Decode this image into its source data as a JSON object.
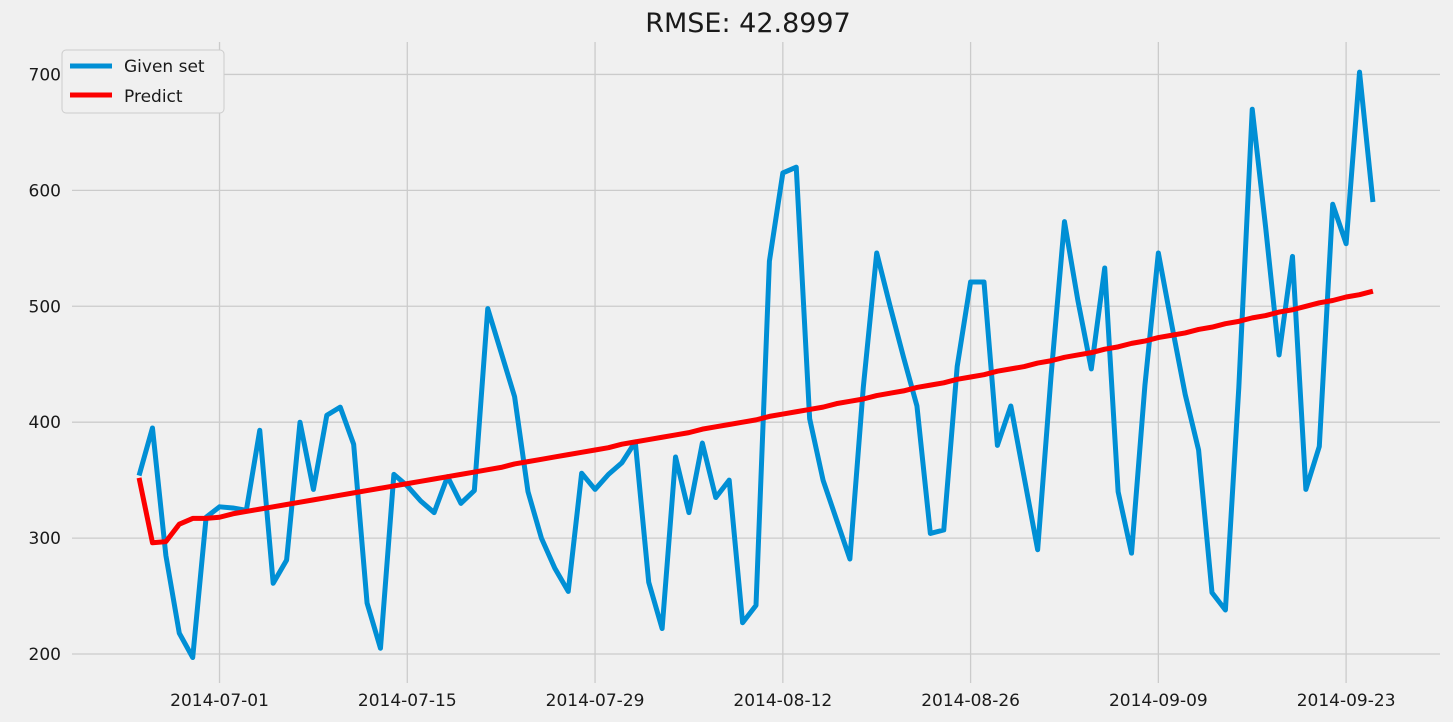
{
  "chart_data": {
    "type": "line",
    "title": "RMSE: 42.8997",
    "xlabel": "",
    "ylabel": "",
    "x_start": "2014-06-25",
    "x_end": "2014-09-24",
    "xlim": [
      "2014-06-20",
      "2014-09-30"
    ],
    "ylim": [
      175,
      728
    ],
    "x_ticks": [
      "2014-07-01",
      "2014-07-15",
      "2014-07-29",
      "2014-08-12",
      "2014-08-26",
      "2014-09-09",
      "2014-09-23"
    ],
    "y_ticks": [
      200,
      300,
      400,
      500,
      600,
      700
    ],
    "grid": true,
    "legend_position": "top-left",
    "series": [
      {
        "name": "Given set",
        "color": "#008fd5",
        "values": [
          354,
          395,
          285,
          218,
          197,
          318,
          327,
          326,
          324,
          393,
          261,
          281,
          400,
          342,
          406,
          413,
          381,
          244,
          205,
          355,
          345,
          332,
          322,
          353,
          330,
          341,
          498,
          460,
          422,
          340,
          300,
          274,
          254,
          356,
          342,
          355,
          365,
          383,
          262,
          222,
          370,
          322,
          382,
          335,
          350,
          227,
          242,
          539,
          615,
          620,
          403,
          350,
          316,
          282,
          430,
          546,
          500,
          456,
          414,
          304,
          307,
          448,
          521,
          521,
          380,
          414,
          352,
          290,
          440,
          573,
          505,
          446,
          533,
          340,
          287,
          432,
          546,
          484,
          424,
          376,
          253,
          238,
          430,
          670,
          568,
          458,
          543,
          342,
          379,
          588,
          554,
          702,
          590
        ]
      },
      {
        "name": "Predict",
        "color": "#fc0000",
        "values": [
          352,
          296,
          297,
          312,
          317,
          317,
          318,
          321,
          323,
          325,
          327,
          329,
          331,
          333,
          335,
          337,
          339,
          341,
          343,
          345,
          347,
          349,
          351,
          353,
          355,
          357,
          359,
          361,
          364,
          366,
          368,
          370,
          372,
          374,
          376,
          378,
          381,
          383,
          385,
          387,
          389,
          391,
          394,
          396,
          398,
          400,
          402,
          405,
          407,
          409,
          411,
          413,
          416,
          418,
          420,
          423,
          425,
          427,
          430,
          432,
          434,
          437,
          439,
          441,
          444,
          446,
          448,
          451,
          453,
          456,
          458,
          460,
          463,
          465,
          468,
          470,
          473,
          475,
          477,
          480,
          482,
          485,
          487,
          490,
          492,
          495,
          497,
          500,
          503,
          505,
          508,
          510,
          513
        ]
      }
    ]
  }
}
